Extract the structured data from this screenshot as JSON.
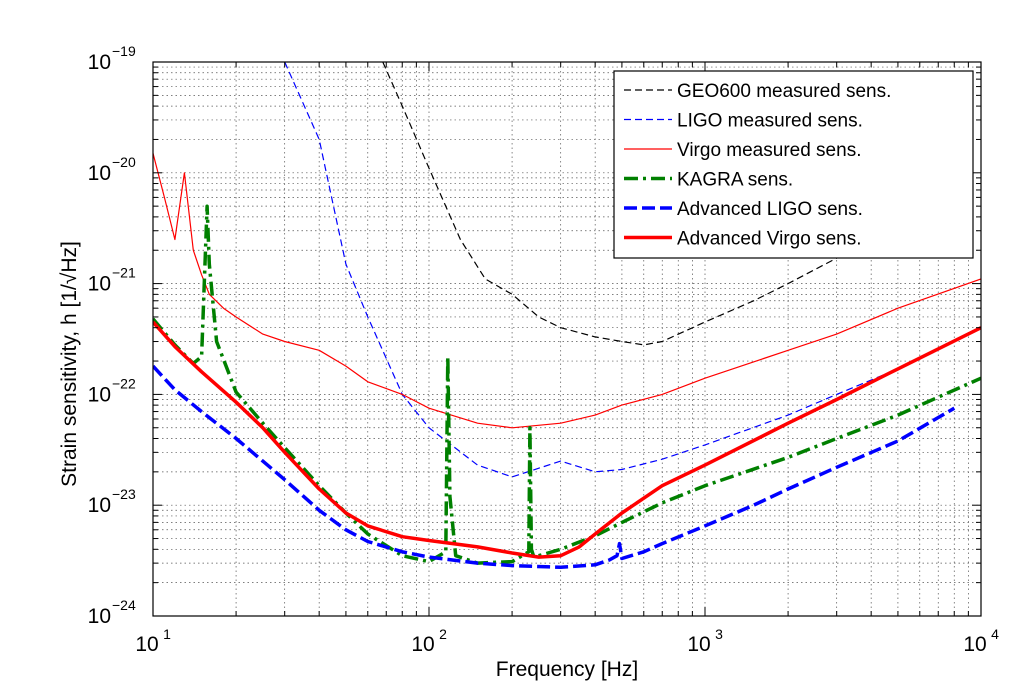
{
  "chart_data": {
    "type": "line",
    "title": "",
    "xlabel": "Frequency [Hz]",
    "ylabel": "Strain sensitivity, h [1/√Hz]",
    "xscale": "log",
    "yscale": "log",
    "xlim": [
      10,
      10000
    ],
    "ylim": [
      1e-24,
      1e-19
    ],
    "grid": true,
    "legend_position": "top-right",
    "x_tick_labels": [
      {
        "base": "10",
        "exp": "1"
      },
      {
        "base": "10",
        "exp": "2"
      },
      {
        "base": "10",
        "exp": "3"
      },
      {
        "base": "10",
        "exp": "4"
      }
    ],
    "y_tick_labels": [
      {
        "base": "10",
        "exp": "−24"
      },
      {
        "base": "10",
        "exp": "−23"
      },
      {
        "base": "10",
        "exp": "−22"
      },
      {
        "base": "10",
        "exp": "−21"
      },
      {
        "base": "10",
        "exp": "−20"
      },
      {
        "base": "10",
        "exp": "−19"
      }
    ],
    "series": [
      {
        "name": "GEO600 measured sens.",
        "color": "#000000",
        "style": "dashed-thin",
        "x": [
          68,
          80,
          100,
          130,
          160,
          200,
          250,
          300,
          400,
          500,
          600,
          700,
          1000,
          1500,
          2000,
          3000
        ],
        "y": [
          1e-19,
          4e-20,
          1.1e-20,
          2.5e-21,
          1.1e-21,
          8e-22,
          5e-22,
          4e-22,
          3.3e-22,
          3e-22,
          2.8e-22,
          3e-22,
          4.5e-22,
          7e-22,
          1e-21,
          1.7e-21
        ]
      },
      {
        "name": "LIGO measured sens.",
        "color": "#0000ff",
        "style": "dashed-thin",
        "x": [
          30,
          40,
          50,
          60,
          80,
          100,
          150,
          200,
          300,
          400,
          500,
          700,
          1000,
          2000,
          3000,
          5000,
          7000
        ],
        "y": [
          1e-19,
          2e-20,
          1.5e-21,
          5e-22,
          1e-22,
          5e-23,
          2.3e-23,
          1.8e-23,
          2.5e-23,
          2e-23,
          2.1e-23,
          2.6e-23,
          3.5e-23,
          6.5e-23,
          1e-22,
          1.7e-22,
          2.5e-22
        ]
      },
      {
        "name": "Virgo measured sens.",
        "color": "#ff0000",
        "style": "solid-thin",
        "x": [
          10,
          11,
          12,
          13,
          14,
          15,
          16,
          18,
          20,
          25,
          30,
          40,
          50,
          60,
          80,
          100,
          150,
          200,
          300,
          400,
          500,
          700,
          1000,
          2000,
          3000,
          5000,
          10000
        ],
        "y": [
          1.5e-20,
          6e-21,
          2.5e-21,
          1e-20,
          2e-21,
          1.2e-21,
          8e-22,
          6e-22,
          5e-22,
          3.5e-22,
          3e-22,
          2.5e-22,
          1.8e-22,
          1.3e-22,
          1e-22,
          7.5e-23,
          5.5e-23,
          5e-23,
          5.5e-23,
          6.5e-23,
          8e-23,
          1e-22,
          1.4e-22,
          2.5e-22,
          3.5e-22,
          6e-22,
          1.1e-21
        ]
      },
      {
        "name": "KAGRA sens.",
        "color": "#008000",
        "style": "dashdot-thick",
        "x": [
          10,
          12,
          14,
          15,
          15.7,
          16,
          17,
          20,
          25,
          30,
          40,
          50,
          60,
          80,
          100,
          115,
          117,
          119,
          125,
          150,
          200,
          230,
          232,
          235,
          240,
          300,
          400,
          500,
          700,
          1000,
          2000,
          3000,
          5000,
          10000
        ],
        "y": [
          4.8e-22,
          2.8e-22,
          1.9e-22,
          2.2e-22,
          5e-21,
          1.5e-21,
          3e-22,
          1.05e-22,
          5.5e-23,
          3.3e-23,
          1.5e-23,
          8.5e-24,
          5.5e-24,
          3.5e-24,
          3.1e-24,
          3.8e-24,
          2.2e-22,
          1.2e-23,
          3.5e-24,
          3e-24,
          3.1e-24,
          3.8e-24,
          5e-23,
          4e-24,
          3.4e-24,
          4e-24,
          5.3e-24,
          7e-24,
          1.05e-23,
          1.5e-23,
          2.7e-23,
          4e-23,
          6.5e-23,
          1.4e-22
        ]
      },
      {
        "name": "Advanced LIGO sens.",
        "color": "#0000ff",
        "style": "dashed-thick",
        "x": [
          10,
          12,
          15,
          20,
          25,
          30,
          40,
          50,
          60,
          80,
          100,
          150,
          200,
          300,
          400,
          450,
          480,
          490,
          500,
          600,
          700,
          1000,
          1500,
          2000,
          3000,
          5000,
          8000
        ],
        "y": [
          1.8e-22,
          1.1e-22,
          7e-23,
          4e-23,
          2.5e-23,
          1.7e-23,
          9e-24,
          6e-24,
          4.7e-24,
          3.8e-24,
          3.4e-24,
          3e-24,
          2.85e-24,
          2.75e-24,
          2.9e-24,
          3.2e-24,
          3.5e-24,
          4.5e-24,
          3.3e-24,
          3.8e-24,
          4.5e-24,
          6.5e-24,
          1e-23,
          1.4e-23,
          2.2e-23,
          3.8e-23,
          7.5e-23
        ]
      },
      {
        "name": "Advanced Virgo sens.",
        "color": "#ff0000",
        "style": "solid-thick",
        "x": [
          10,
          12,
          15,
          20,
          25,
          30,
          40,
          50,
          60,
          80,
          100,
          150,
          200,
          250,
          300,
          350,
          400,
          500,
          700,
          1000,
          2000,
          3000,
          5000,
          10000
        ],
        "y": [
          4.5e-22,
          2.7e-22,
          1.6e-22,
          8.5e-23,
          5e-23,
          3e-23,
          1.4e-23,
          8.5e-24,
          6.5e-24,
          5.2e-24,
          4.8e-24,
          4.2e-24,
          3.7e-24,
          3.4e-24,
          3.5e-24,
          4.2e-24,
          5.5e-24,
          8.5e-24,
          1.5e-23,
          2.3e-23,
          5.5e-23,
          9e-23,
          1.7e-22,
          4e-22
        ]
      }
    ]
  }
}
